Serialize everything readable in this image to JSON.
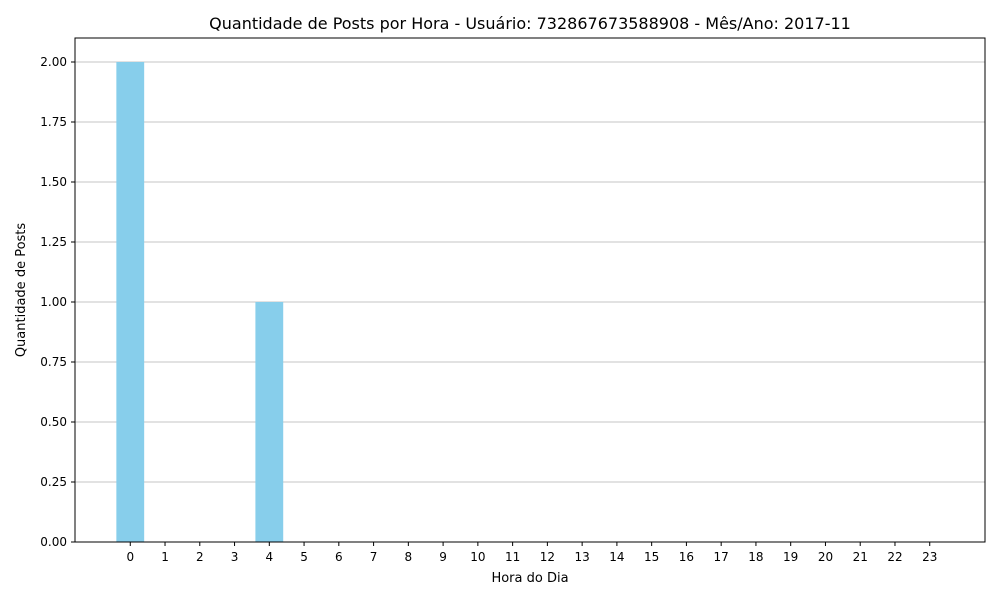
{
  "chart_data": {
    "type": "bar",
    "title": "Quantidade de Posts por Hora - Usuário: 732867673588908 - Mês/Ano: 2017-11",
    "xlabel": "Hora do Dia",
    "ylabel": "Quantidade de Posts",
    "categories": [
      "0",
      "1",
      "2",
      "3",
      "4",
      "5",
      "6",
      "7",
      "8",
      "9",
      "10",
      "11",
      "12",
      "13",
      "14",
      "15",
      "16",
      "17",
      "18",
      "19",
      "20",
      "21",
      "22",
      "23"
    ],
    "values": [
      2,
      0,
      0,
      0,
      1,
      0,
      0,
      0,
      0,
      0,
      0,
      0,
      0,
      0,
      0,
      0,
      0,
      0,
      0,
      0,
      0,
      0,
      0,
      0
    ],
    "ylim": [
      0,
      2.1
    ],
    "yticks": [
      "0.00",
      "0.25",
      "0.50",
      "0.75",
      "1.00",
      "1.25",
      "1.50",
      "1.75",
      "2.00"
    ],
    "grid": "y",
    "legend": "none",
    "colors": {
      "bar": "#87CEEB",
      "grid": "#b0b0b0",
      "axis": "#000000"
    }
  }
}
